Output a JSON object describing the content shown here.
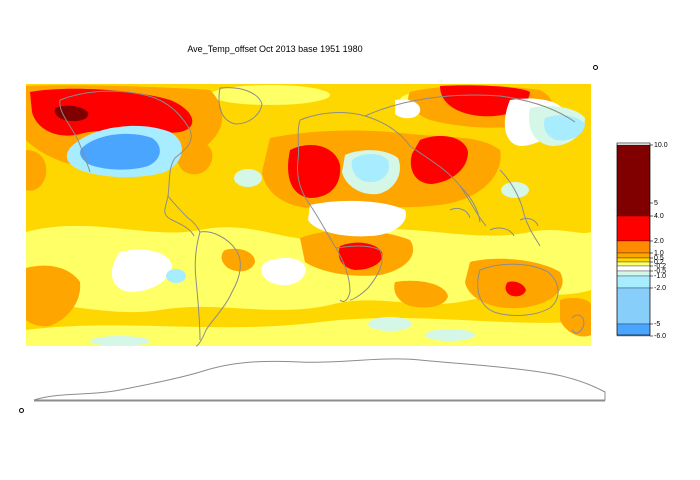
{
  "title": "Ave_Temp_offset Oct 2013  base 1951 1980",
  "palette": {
    "background": "#ffffff",
    "coast": "#8c8c8c",
    "dark_red": "#800000",
    "red": "#ff0000",
    "orange": "#ff8c00",
    "light_orange": "#ffa500",
    "yellow": "#ffd700",
    "pale_yellow": "#ffff66",
    "white": "#ffffff",
    "mint": "#d4f7e8",
    "light_cyan": "#a8ecff",
    "cyan": "#87cefa",
    "sky_blue": "#4aa5ff",
    "blue": "#3d85f0"
  },
  "legend": {
    "labels": [
      "10.0",
      "5",
      "4.0",
      "2.0",
      "1.0",
      "0.5",
      "0.2",
      "-0.2",
      "-0.5",
      "-1.0",
      "-2.0",
      "-5",
      "-6.0"
    ],
    "bands": [
      {
        "from": 4.0,
        "to": 10.0,
        "color": "#800000"
      },
      {
        "from": 2.0,
        "to": 4.0,
        "color": "#ff0000"
      },
      {
        "from": 1.0,
        "to": 2.0,
        "color": "#ff8c00"
      },
      {
        "from": 0.5,
        "to": 1.0,
        "color": "#ffa500"
      },
      {
        "from": 0.2,
        "to": 0.5,
        "color": "#ffd700"
      },
      {
        "from": -0.2,
        "to": 0.2,
        "color": "#ffff66"
      },
      {
        "from": -0.5,
        "to": -0.2,
        "color": "#ffffff"
      },
      {
        "from": -1.0,
        "to": -0.5,
        "color": "#d4f7e8"
      },
      {
        "from": -2.0,
        "to": -1.0,
        "color": "#a8ecff"
      },
      {
        "from": -5.0,
        "to": -2.0,
        "color": "#87cefa"
      },
      {
        "from": -6.0,
        "to": -5.0,
        "color": "#4aa5ff"
      }
    ]
  }
}
